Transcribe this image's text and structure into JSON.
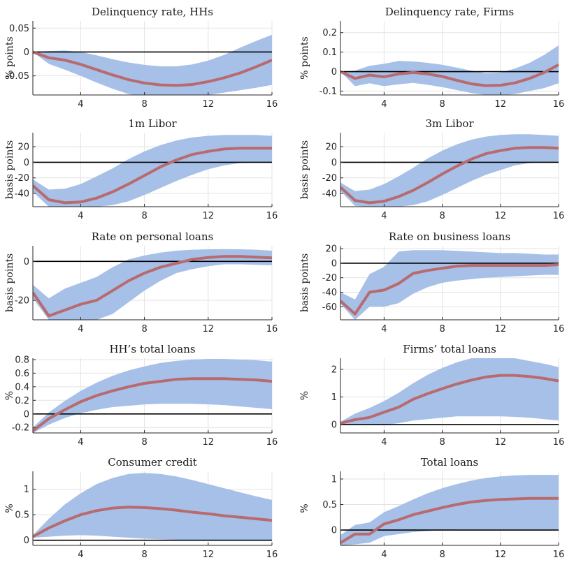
{
  "colors": {
    "band": "#a7c0e8",
    "line": "#b86b6e",
    "zero": "#000000",
    "grid": "#e3e3e3",
    "axis": "#262626"
  },
  "chart_data": [
    {
      "type": "line",
      "title": "Delinquency rate, HHs",
      "ylabel": "% points",
      "xlim": [
        1,
        16
      ],
      "ylim": [
        -0.09,
        0.065
      ],
      "xticks": [
        4,
        8,
        12,
        16
      ],
      "xtick_labels": [
        "4",
        "8",
        "12",
        "16"
      ],
      "yticks": [
        -0.05,
        0,
        0.05
      ],
      "ytick_labels": [
        "-0.05",
        "0",
        "0.05"
      ],
      "grid": true,
      "x": [
        1,
        2,
        3,
        4,
        5,
        6,
        7,
        8,
        9,
        10,
        11,
        12,
        13,
        14,
        15,
        16
      ],
      "median": [
        0,
        -0.012,
        -0.017,
        -0.026,
        -0.037,
        -0.048,
        -0.058,
        -0.065,
        -0.069,
        -0.07,
        -0.068,
        -0.062,
        -0.054,
        -0.044,
        -0.031,
        -0.017
      ],
      "upper": [
        0,
        0.002,
        0.003,
        0,
        -0.007,
        -0.015,
        -0.022,
        -0.027,
        -0.03,
        -0.03,
        -0.026,
        -0.018,
        -0.006,
        0.009,
        0.023,
        0.036
      ],
      "lower": [
        0,
        -0.025,
        -0.037,
        -0.05,
        -0.064,
        -0.077,
        -0.088,
        -0.094,
        -0.097,
        -0.097,
        -0.094,
        -0.09,
        -0.085,
        -0.08,
        -0.075,
        -0.069
      ]
    },
    {
      "type": "line",
      "title": "Delinquency rate, Firms",
      "ylabel": "% points",
      "xlim": [
        1,
        16
      ],
      "ylim": [
        -0.12,
        0.26
      ],
      "xticks": [
        4,
        8,
        12,
        16
      ],
      "xtick_labels": [
        "4",
        "8",
        "12",
        "16"
      ],
      "yticks": [
        -0.1,
        0,
        0.1,
        0.2
      ],
      "ytick_labels": [
        "-0.1",
        "0",
        "0.1",
        "0.2"
      ],
      "grid": true,
      "x": [
        1,
        2,
        3,
        4,
        5,
        6,
        7,
        8,
        9,
        10,
        11,
        12,
        13,
        14,
        15,
        16
      ],
      "median": [
        0,
        -0.035,
        -0.018,
        -0.027,
        -0.012,
        -0.005,
        -0.012,
        -0.025,
        -0.045,
        -0.063,
        -0.072,
        -0.07,
        -0.058,
        -0.035,
        -0.005,
        0.035
      ],
      "upper": [
        0,
        0.005,
        0.03,
        0.04,
        0.055,
        0.052,
        0.045,
        0.035,
        0.02,
        0.005,
        -0.008,
        -0.005,
        0.015,
        0.045,
        0.085,
        0.135
      ],
      "lower": [
        0,
        -0.075,
        -0.06,
        -0.075,
        -0.065,
        -0.058,
        -0.068,
        -0.08,
        -0.095,
        -0.11,
        -0.12,
        -0.122,
        -0.115,
        -0.1,
        -0.085,
        -0.06
      ]
    },
    {
      "type": "line",
      "title": "1m Libor",
      "ylabel": "basis points",
      "xlim": [
        1,
        16
      ],
      "ylim": [
        -57,
        38
      ],
      "xticks": [
        4,
        8,
        12,
        16
      ],
      "xtick_labels": [
        "4",
        "8",
        "12",
        "16"
      ],
      "yticks": [
        -40,
        -20,
        0,
        20
      ],
      "ytick_labels": [
        "-40",
        "-20",
        "0",
        "20"
      ],
      "grid": true,
      "x": [
        1,
        2,
        3,
        4,
        5,
        6,
        7,
        8,
        9,
        10,
        11,
        12,
        13,
        14,
        15,
        16
      ],
      "median": [
        -30,
        -48,
        -52,
        -51,
        -46,
        -38,
        -28,
        -17,
        -6,
        3,
        10,
        14,
        17,
        18,
        18,
        18
      ],
      "upper": [
        -22,
        -35,
        -34,
        -28,
        -18,
        -8,
        4,
        14,
        22,
        28,
        32,
        34,
        35,
        35,
        35,
        34
      ],
      "lower": [
        -38,
        -57,
        -57,
        -57,
        -57,
        -55,
        -50,
        -42,
        -33,
        -24,
        -16,
        -9,
        -4,
        -1,
        0,
        0
      ]
    },
    {
      "type": "line",
      "title": "3m Libor",
      "ylabel": "basis points",
      "xlim": [
        1,
        16
      ],
      "ylim": [
        -57,
        38
      ],
      "xticks": [
        4,
        8,
        12,
        16
      ],
      "xtick_labels": [
        "4",
        "8",
        "12",
        "16"
      ],
      "yticks": [
        -40,
        -20,
        0,
        20
      ],
      "ytick_labels": [
        "-40",
        "-20",
        "0",
        "20"
      ],
      "grid": true,
      "x": [
        1,
        2,
        3,
        4,
        5,
        6,
        7,
        8,
        9,
        10,
        11,
        12,
        13,
        14,
        15,
        16
      ],
      "median": [
        -32,
        -49,
        -52,
        -50,
        -44,
        -36,
        -26,
        -15,
        -5,
        4,
        11,
        15,
        18,
        19,
        19,
        18
      ],
      "upper": [
        -26,
        -37,
        -35,
        -28,
        -18,
        -7,
        5,
        15,
        23,
        29,
        33,
        35,
        36,
        36,
        35,
        34
      ],
      "lower": [
        -37,
        -56,
        -57,
        -57,
        -57,
        -55,
        -50,
        -42,
        -33,
        -24,
        -16,
        -10,
        -4,
        -1,
        0,
        0
      ]
    },
    {
      "type": "line",
      "title": "Rate on personal loans",
      "ylabel": "basis points",
      "xlim": [
        1,
        16
      ],
      "ylim": [
        -30,
        8
      ],
      "xticks": [
        4,
        8,
        12,
        16
      ],
      "xtick_labels": [
        "4",
        "8",
        "12",
        "16"
      ],
      "yticks": [
        -20,
        0
      ],
      "ytick_labels": [
        "-20",
        "0"
      ],
      "grid": true,
      "x": [
        1,
        2,
        3,
        4,
        5,
        6,
        7,
        8,
        9,
        10,
        11,
        12,
        13,
        14,
        15,
        16
      ],
      "median": [
        -16,
        -28,
        -25,
        -22,
        -20,
        -15,
        -10,
        -6,
        -3,
        -1,
        1,
        2,
        2.5,
        2.5,
        2.2,
        1.8
      ],
      "upper": [
        -12,
        -19,
        -14,
        -11,
        -8,
        -3,
        1,
        3,
        4.5,
        5.5,
        6,
        6.2,
        6.3,
        6.2,
        6,
        5.5
      ],
      "lower": [
        -19,
        -30,
        -30,
        -30,
        -30,
        -27,
        -21,
        -15,
        -10,
        -6,
        -4,
        -2.5,
        -1.5,
        -1.5,
        -1.8,
        -2
      ]
    },
    {
      "type": "line",
      "title": "Rate on business loans",
      "ylabel": "basis points",
      "xlim": [
        1,
        16
      ],
      "ylim": [
        -78,
        24
      ],
      "xticks": [
        4,
        8,
        12,
        16
      ],
      "xtick_labels": [
        "4",
        "8",
        "12",
        "16"
      ],
      "yticks": [
        -60,
        -40,
        -20,
        0,
        20
      ],
      "ytick_labels": [
        "-60",
        "-40",
        "-20",
        "0",
        "20"
      ],
      "grid": true,
      "x": [
        1,
        2,
        3,
        4,
        5,
        6,
        7,
        8,
        9,
        10,
        11,
        12,
        13,
        14,
        15,
        16
      ],
      "median": [
        -52,
        -70,
        -40,
        -37,
        -28,
        -14,
        -10,
        -7,
        -4,
        -3,
        -3,
        -3,
        -3,
        -3,
        -3,
        -2
      ],
      "upper": [
        -40,
        -50,
        -15,
        -5,
        16,
        18,
        18,
        18,
        17,
        16,
        15,
        14,
        14,
        13,
        12,
        12
      ],
      "lower": [
        -56,
        -78,
        -60,
        -60,
        -55,
        -42,
        -33,
        -27,
        -24,
        -22,
        -20,
        -19,
        -18,
        -17,
        -16,
        -16
      ]
    },
    {
      "type": "line",
      "title": "HH’s total loans",
      "ylabel": "%",
      "xlim": [
        1,
        16
      ],
      "ylim": [
        -0.28,
        0.82
      ],
      "xticks": [
        4,
        8,
        12,
        16
      ],
      "xtick_labels": [
        "4",
        "8",
        "12",
        "16"
      ],
      "yticks": [
        -0.2,
        0,
        0.2,
        0.4,
        0.6,
        0.8
      ],
      "ytick_labels": [
        "-0.2",
        "0",
        "0.2",
        "0.4",
        "0.6",
        "0.8"
      ],
      "grid": true,
      "x": [
        1,
        2,
        3,
        4,
        5,
        6,
        7,
        8,
        9,
        10,
        11,
        12,
        13,
        14,
        15,
        16
      ],
      "median": [
        -0.25,
        -0.07,
        0.06,
        0.18,
        0.27,
        0.34,
        0.4,
        0.45,
        0.48,
        0.51,
        0.52,
        0.52,
        0.52,
        0.51,
        0.5,
        0.48
      ],
      "upper": [
        -0.2,
        0.02,
        0.19,
        0.34,
        0.46,
        0.56,
        0.64,
        0.7,
        0.75,
        0.78,
        0.8,
        0.81,
        0.81,
        0.8,
        0.79,
        0.77
      ],
      "lower": [
        -0.28,
        -0.16,
        -0.06,
        0.01,
        0.06,
        0.1,
        0.12,
        0.14,
        0.15,
        0.15,
        0.15,
        0.14,
        0.13,
        0.11,
        0.09,
        0.07
      ]
    },
    {
      "type": "line",
      "title": "Firms’ total loans",
      "ylabel": "%",
      "xlim": [
        1,
        16
      ],
      "ylim": [
        -0.3,
        2.4
      ],
      "xticks": [
        4,
        8,
        12,
        16
      ],
      "xtick_labels": [
        "4",
        "8",
        "12",
        "16"
      ],
      "yticks": [
        0,
        1,
        2
      ],
      "ytick_labels": [
        "0",
        "1",
        "2"
      ],
      "grid": true,
      "x": [
        1,
        2,
        3,
        4,
        5,
        6,
        7,
        8,
        9,
        10,
        11,
        12,
        13,
        14,
        15,
        16
      ],
      "median": [
        0.05,
        0.18,
        0.26,
        0.45,
        0.63,
        0.92,
        1.12,
        1.3,
        1.47,
        1.61,
        1.72,
        1.78,
        1.78,
        1.74,
        1.67,
        1.58
      ],
      "upper": [
        0.1,
        0.4,
        0.6,
        0.85,
        1.15,
        1.5,
        1.8,
        2.05,
        2.25,
        2.4,
        2.4,
        2.4,
        2.4,
        2.3,
        2.2,
        2.08
      ],
      "lower": [
        -0.02,
        0.0,
        0.0,
        0.0,
        0.05,
        0.15,
        0.2,
        0.25,
        0.3,
        0.3,
        0.3,
        0.3,
        0.28,
        0.25,
        0.2,
        0.15
      ]
    },
    {
      "type": "line",
      "title": "Consumer credit",
      "ylabel": "%",
      "xlim": [
        1,
        16
      ],
      "ylim": [
        -0.1,
        1.35
      ],
      "xticks": [
        4,
        8,
        12,
        16
      ],
      "xtick_labels": [
        "4",
        "8",
        "12",
        "16"
      ],
      "yticks": [
        0,
        0.5,
        1
      ],
      "ytick_labels": [
        "0",
        "0.5",
        "1"
      ],
      "grid": true,
      "x": [
        1,
        2,
        3,
        4,
        5,
        6,
        7,
        8,
        9,
        10,
        11,
        12,
        13,
        14,
        15,
        16
      ],
      "median": [
        0.07,
        0.24,
        0.38,
        0.5,
        0.58,
        0.63,
        0.65,
        0.64,
        0.62,
        0.59,
        0.55,
        0.52,
        0.48,
        0.45,
        0.42,
        0.39
      ],
      "upper": [
        0.1,
        0.42,
        0.7,
        0.92,
        1.1,
        1.22,
        1.3,
        1.32,
        1.3,
        1.25,
        1.18,
        1.1,
        1.02,
        0.94,
        0.86,
        0.79
      ],
      "lower": [
        0.05,
        0.07,
        0.09,
        0.1,
        0.09,
        0.07,
        0.05,
        0.03,
        0.02,
        0.01,
        0.01,
        0.01,
        0.0,
        0.0,
        0.0,
        0.0
      ]
    },
    {
      "type": "line",
      "title": "Total loans",
      "ylabel": "%",
      "xlim": [
        1,
        16
      ],
      "ylim": [
        -0.3,
        1.15
      ],
      "xticks": [
        4,
        8,
        12,
        16
      ],
      "xtick_labels": [
        "4",
        "8",
        "12",
        "16"
      ],
      "yticks": [
        0,
        0.5,
        1
      ],
      "ytick_labels": [
        "0",
        "0.5",
        "1"
      ],
      "grid": true,
      "x": [
        1,
        2,
        3,
        4,
        5,
        6,
        7,
        8,
        9,
        10,
        11,
        12,
        13,
        14,
        15,
        16
      ],
      "median": [
        -0.25,
        -0.08,
        -0.08,
        0.12,
        0.2,
        0.3,
        0.37,
        0.44,
        0.5,
        0.55,
        0.58,
        0.6,
        0.61,
        0.62,
        0.62,
        0.62
      ],
      "upper": [
        -0.1,
        0.1,
        0.15,
        0.35,
        0.47,
        0.6,
        0.72,
        0.82,
        0.9,
        0.97,
        1.02,
        1.05,
        1.07,
        1.08,
        1.08,
        1.08
      ],
      "lower": [
        -0.3,
        -0.28,
        -0.25,
        -0.12,
        -0.08,
        -0.04,
        -0.02,
        0.0,
        0.01,
        0.01,
        0.01,
        0.01,
        0.01,
        0.01,
        0.01,
        0.01
      ]
    }
  ]
}
